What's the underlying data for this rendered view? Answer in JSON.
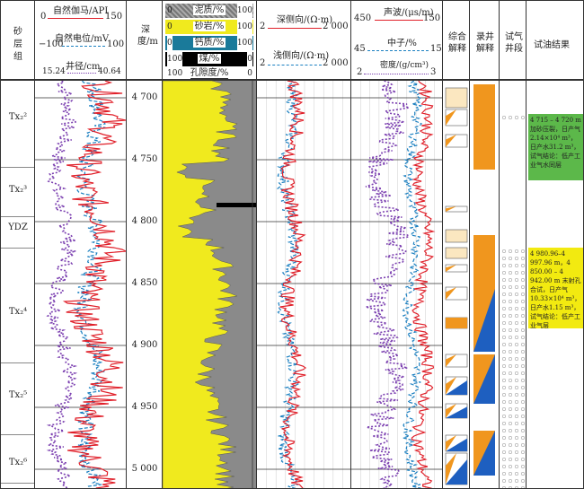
{
  "header": {
    "layer_group": "砂层组",
    "gr": {
      "label": "自然伽马/API",
      "min": "0",
      "max": "150"
    },
    "sp": {
      "label": "自然电位/mV",
      "min": "−100",
      "max": "100"
    },
    "cal": {
      "label": "井径/cm",
      "min": "15.24",
      "max": "40.64"
    },
    "depth": "深度/m",
    "shale": {
      "label": "泥质/%",
      "min": "0",
      "max": "100"
    },
    "sand": {
      "label": "砂岩/%",
      "min": "0",
      "max": "100"
    },
    "calc": {
      "label": "钙质/%",
      "min": "0",
      "max": "100"
    },
    "coal": {
      "label": "煤/%",
      "min": "100",
      "max": "0"
    },
    "por": {
      "label": "孔隙度/%",
      "min": "100",
      "max": "0"
    },
    "deep_res": {
      "label": "深侧向/(Ω·m)",
      "min": "2",
      "max": "2 000"
    },
    "shallow_res": {
      "label": "浅侧向/(Ω·m)",
      "min": "2",
      "max": "2 000"
    },
    "ac": {
      "label": "声波/(μs/m)",
      "min": "450",
      "max": "150"
    },
    "cnl": {
      "label": "中子/%",
      "min": "45",
      "max": "15"
    },
    "den": {
      "label": "密度/(g/cm³)",
      "min": "2",
      "max": "3"
    },
    "comp_interp": "综合解释",
    "mud_interp": "录井解释",
    "test_interval": "试气井段",
    "test_result": "试油结果"
  },
  "colors": {
    "gr": "#e0202a",
    "sp": "#1a7fc0",
    "cal": "#7b3fb0",
    "sand": "#f0ea1e",
    "shale": "#8a8a8a",
    "calc": "#1a7a9a",
    "orange": "#f0961e",
    "blue": "#1e5fc0",
    "green": "#5cb84a",
    "yellow": "#f2ea10"
  },
  "layers": [
    "Tx₂²",
    "Tx₂³",
    "YDZ",
    "Tx₂⁴",
    "Tx₂⁵",
    "Tx₂⁶"
  ],
  "depth_ticks": [
    "4 700",
    "4 750",
    "4 800",
    "4 850",
    "4 900",
    "4 950",
    "5 000"
  ],
  "results": [
    "4 715 – 4 720 m 加砂压裂，日产气2.14×10⁴ m³，日产水31.2 m³，试气结论：低产工业气水同层",
    "4 980.96–4 997.96 m，4 850.00 – 4 942.00 m 末射孔合试，日产气10.33×10⁴ m³，日产水1.15 m³，试气结论：低产工业气层"
  ]
}
